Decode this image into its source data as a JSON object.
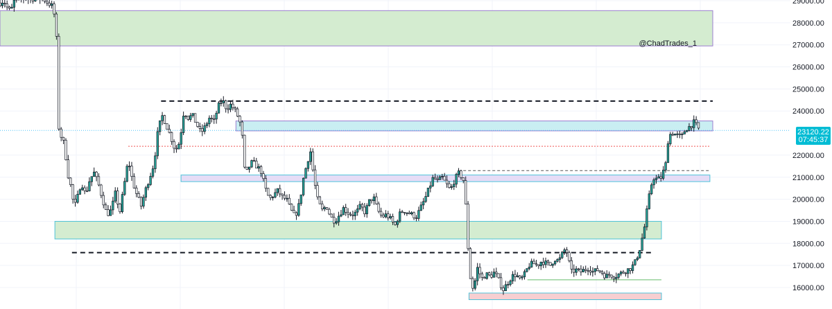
{
  "watermark": "@ChadTrades_1",
  "price_tag": {
    "price": "23120.22",
    "countdown": "07:45:37",
    "color": "#00bcd4"
  },
  "colors": {
    "up_candle": "#26a69a",
    "down_candle": "#ffffff",
    "candle_outline": "#131722",
    "green_zone": "#d4ecd0",
    "cyan_zone": "#c9eef2",
    "purple_zone": "#e6dcf6",
    "pink_zone": "#f7cfd1",
    "red_dotted": "#ef5350",
    "grid": "#f0f3fa"
  },
  "chart_data": {
    "type": "candlestick",
    "y_axis": {
      "position": "right",
      "ticks": [
        "29000.00",
        "28000.00",
        "27000.00",
        "26000.00",
        "25000.00",
        "24000.00",
        "22000.00",
        "21000.00",
        "20000.00",
        "19000.00",
        "18000.00",
        "17000.00",
        "16000.00"
      ],
      "range": [
        15000,
        29100
      ]
    },
    "zones": [
      {
        "name": "green-supply",
        "from_index": 0,
        "to_index": 1000,
        "low": 26950,
        "high": 28550,
        "color": "green"
      },
      {
        "name": "cyan-resistance",
        "from_index": 331,
        "to_index": 1000,
        "low": 23100,
        "high": 23550,
        "color": "cyan"
      },
      {
        "name": "purple-flip",
        "from_index": 254,
        "to_index": 996,
        "low": 20800,
        "high": 21100,
        "color": "purple"
      },
      {
        "name": "green-demand",
        "from_index": 77,
        "to_index": 928,
        "low": 18200,
        "high": 19000,
        "color": "green"
      },
      {
        "name": "pink-low",
        "from_index": 658,
        "to_index": 928,
        "low": 15450,
        "high": 15750,
        "color": "pink"
      }
    ],
    "levels": [
      {
        "name": "black-dashed-top",
        "price": 24450,
        "from_index": 226,
        "to_index": 1000,
        "style": "dashed"
      },
      {
        "name": "black-dashed-bottom",
        "price": 17580,
        "from_index": 101,
        "to_index": 918,
        "style": "dashed"
      },
      {
        "name": "grey-dashed",
        "price": 21300,
        "from_index": 650,
        "to_index": 996,
        "style": "dashed-thin"
      },
      {
        "name": "red-dotted",
        "price": 22400,
        "from_index": 180,
        "to_index": 996,
        "style": "dotted"
      },
      {
        "name": "green-line",
        "price": 16350,
        "from_index": 740,
        "to_index": 928,
        "style": "solid"
      },
      {
        "name": "blue-dotted-current",
        "price": 23120,
        "from_index": 0,
        "to_index": 1000,
        "style": "dotted-current"
      }
    ],
    "price_path": [
      [
        0,
        28900
      ],
      [
        5,
        29000
      ],
      [
        10,
        28700
      ],
      [
        15,
        28500
      ],
      [
        20,
        29000
      ],
      [
        25,
        29100
      ],
      [
        60,
        29100
      ],
      [
        75,
        28700
      ],
      [
        80,
        27000
      ],
      [
        83,
        22500
      ],
      [
        87,
        23000
      ],
      [
        92,
        22000
      ],
      [
        96,
        21000
      ],
      [
        100,
        20500
      ],
      [
        104,
        19600
      ],
      [
        108,
        20000
      ],
      [
        114,
        20800
      ],
      [
        120,
        20200
      ],
      [
        126,
        20900
      ],
      [
        132,
        21200
      ],
      [
        138,
        20700
      ],
      [
        144,
        20000
      ],
      [
        150,
        19300
      ],
      [
        156,
        19500
      ],
      [
        162,
        20300
      ],
      [
        168,
        19400
      ],
      [
        174,
        20600
      ],
      [
        180,
        21800
      ],
      [
        186,
        20800
      ],
      [
        192,
        20200
      ],
      [
        198,
        19700
      ],
      [
        204,
        20400
      ],
      [
        210,
        21000
      ],
      [
        216,
        21600
      ],
      [
        222,
        23200
      ],
      [
        228,
        23800
      ],
      [
        234,
        23300
      ],
      [
        240,
        22800
      ],
      [
        246,
        22200
      ],
      [
        252,
        22600
      ],
      [
        258,
        24000
      ],
      [
        264,
        23700
      ],
      [
        270,
        23800
      ],
      [
        276,
        23400
      ],
      [
        282,
        23000
      ],
      [
        288,
        23300
      ],
      [
        294,
        23700
      ],
      [
        300,
        23500
      ],
      [
        306,
        24200
      ],
      [
        312,
        24500
      ],
      [
        318,
        24100
      ],
      [
        324,
        24300
      ],
      [
        330,
        24000
      ],
      [
        336,
        23600
      ],
      [
        340,
        22800
      ],
      [
        344,
        21000
      ],
      [
        348,
        21400
      ],
      [
        354,
        21700
      ],
      [
        360,
        21500
      ],
      [
        366,
        21300
      ],
      [
        372,
        20500
      ],
      [
        378,
        20000
      ],
      [
        384,
        20200
      ],
      [
        390,
        20400
      ],
      [
        396,
        20100
      ],
      [
        402,
        20000
      ],
      [
        408,
        19500
      ],
      [
        414,
        19200
      ],
      [
        420,
        19800
      ],
      [
        426,
        21000
      ],
      [
        432,
        21800
      ],
      [
        436,
        22200
      ],
      [
        440,
        21000
      ],
      [
        446,
        19900
      ],
      [
        452,
        19500
      ],
      [
        458,
        19700
      ],
      [
        464,
        19200
      ],
      [
        470,
        19000
      ],
      [
        476,
        19300
      ],
      [
        482,
        19600
      ],
      [
        488,
        19400
      ],
      [
        494,
        19300
      ],
      [
        500,
        19400
      ],
      [
        506,
        19700
      ],
      [
        512,
        19400
      ],
      [
        518,
        19900
      ],
      [
        524,
        20100
      ],
      [
        530,
        19500
      ],
      [
        536,
        19200
      ],
      [
        542,
        19300
      ],
      [
        548,
        19100
      ],
      [
        554,
        18800
      ],
      [
        560,
        19300
      ],
      [
        566,
        19500
      ],
      [
        572,
        19400
      ],
      [
        578,
        19300
      ],
      [
        584,
        19200
      ],
      [
        590,
        19600
      ],
      [
        596,
        20000
      ],
      [
        602,
        20500
      ],
      [
        608,
        21000
      ],
      [
        614,
        20800
      ],
      [
        620,
        21000
      ],
      [
        626,
        20700
      ],
      [
        632,
        20400
      ],
      [
        638,
        20900
      ],
      [
        644,
        21200
      ],
      [
        650,
        20900
      ],
      [
        654,
        19500
      ],
      [
        658,
        17000
      ],
      [
        662,
        15900
      ],
      [
        666,
        16200
      ],
      [
        670,
        16900
      ],
      [
        676,
        16400
      ],
      [
        682,
        16600
      ],
      [
        688,
        16500
      ],
      [
        694,
        16700
      ],
      [
        700,
        16300
      ],
      [
        706,
        15900
      ],
      [
        712,
        16200
      ],
      [
        718,
        16500
      ],
      [
        724,
        16600
      ],
      [
        730,
        16300
      ],
      [
        736,
        16600
      ],
      [
        742,
        17000
      ],
      [
        748,
        17100
      ],
      [
        754,
        17000
      ],
      [
        760,
        17200
      ],
      [
        766,
        17100
      ],
      [
        772,
        17000
      ],
      [
        778,
        17300
      ],
      [
        784,
        17200
      ],
      [
        790,
        17600
      ],
      [
        794,
        17800
      ],
      [
        798,
        17200
      ],
      [
        802,
        16700
      ],
      [
        808,
        16800
      ],
      [
        814,
        16700
      ],
      [
        820,
        16800
      ],
      [
        826,
        16900
      ],
      [
        832,
        16700
      ],
      [
        838,
        16800
      ],
      [
        844,
        16700
      ],
      [
        850,
        16500
      ],
      [
        856,
        16600
      ],
      [
        862,
        16500
      ],
      [
        868,
        16600
      ],
      [
        874,
        16700
      ],
      [
        880,
        16800
      ],
      [
        886,
        16900
      ],
      [
        892,
        17200
      ],
      [
        898,
        17800
      ],
      [
        904,
        18700
      ],
      [
        910,
        20000
      ],
      [
        916,
        21000
      ],
      [
        922,
        20900
      ],
      [
        928,
        21000
      ],
      [
        934,
        21600
      ],
      [
        938,
        22900
      ],
      [
        944,
        23000
      ],
      [
        950,
        22900
      ],
      [
        956,
        22800
      ],
      [
        962,
        23200
      ],
      [
        968,
        23300
      ],
      [
        974,
        23500
      ],
      [
        978,
        23300
      ],
      [
        982,
        23100
      ]
    ]
  }
}
